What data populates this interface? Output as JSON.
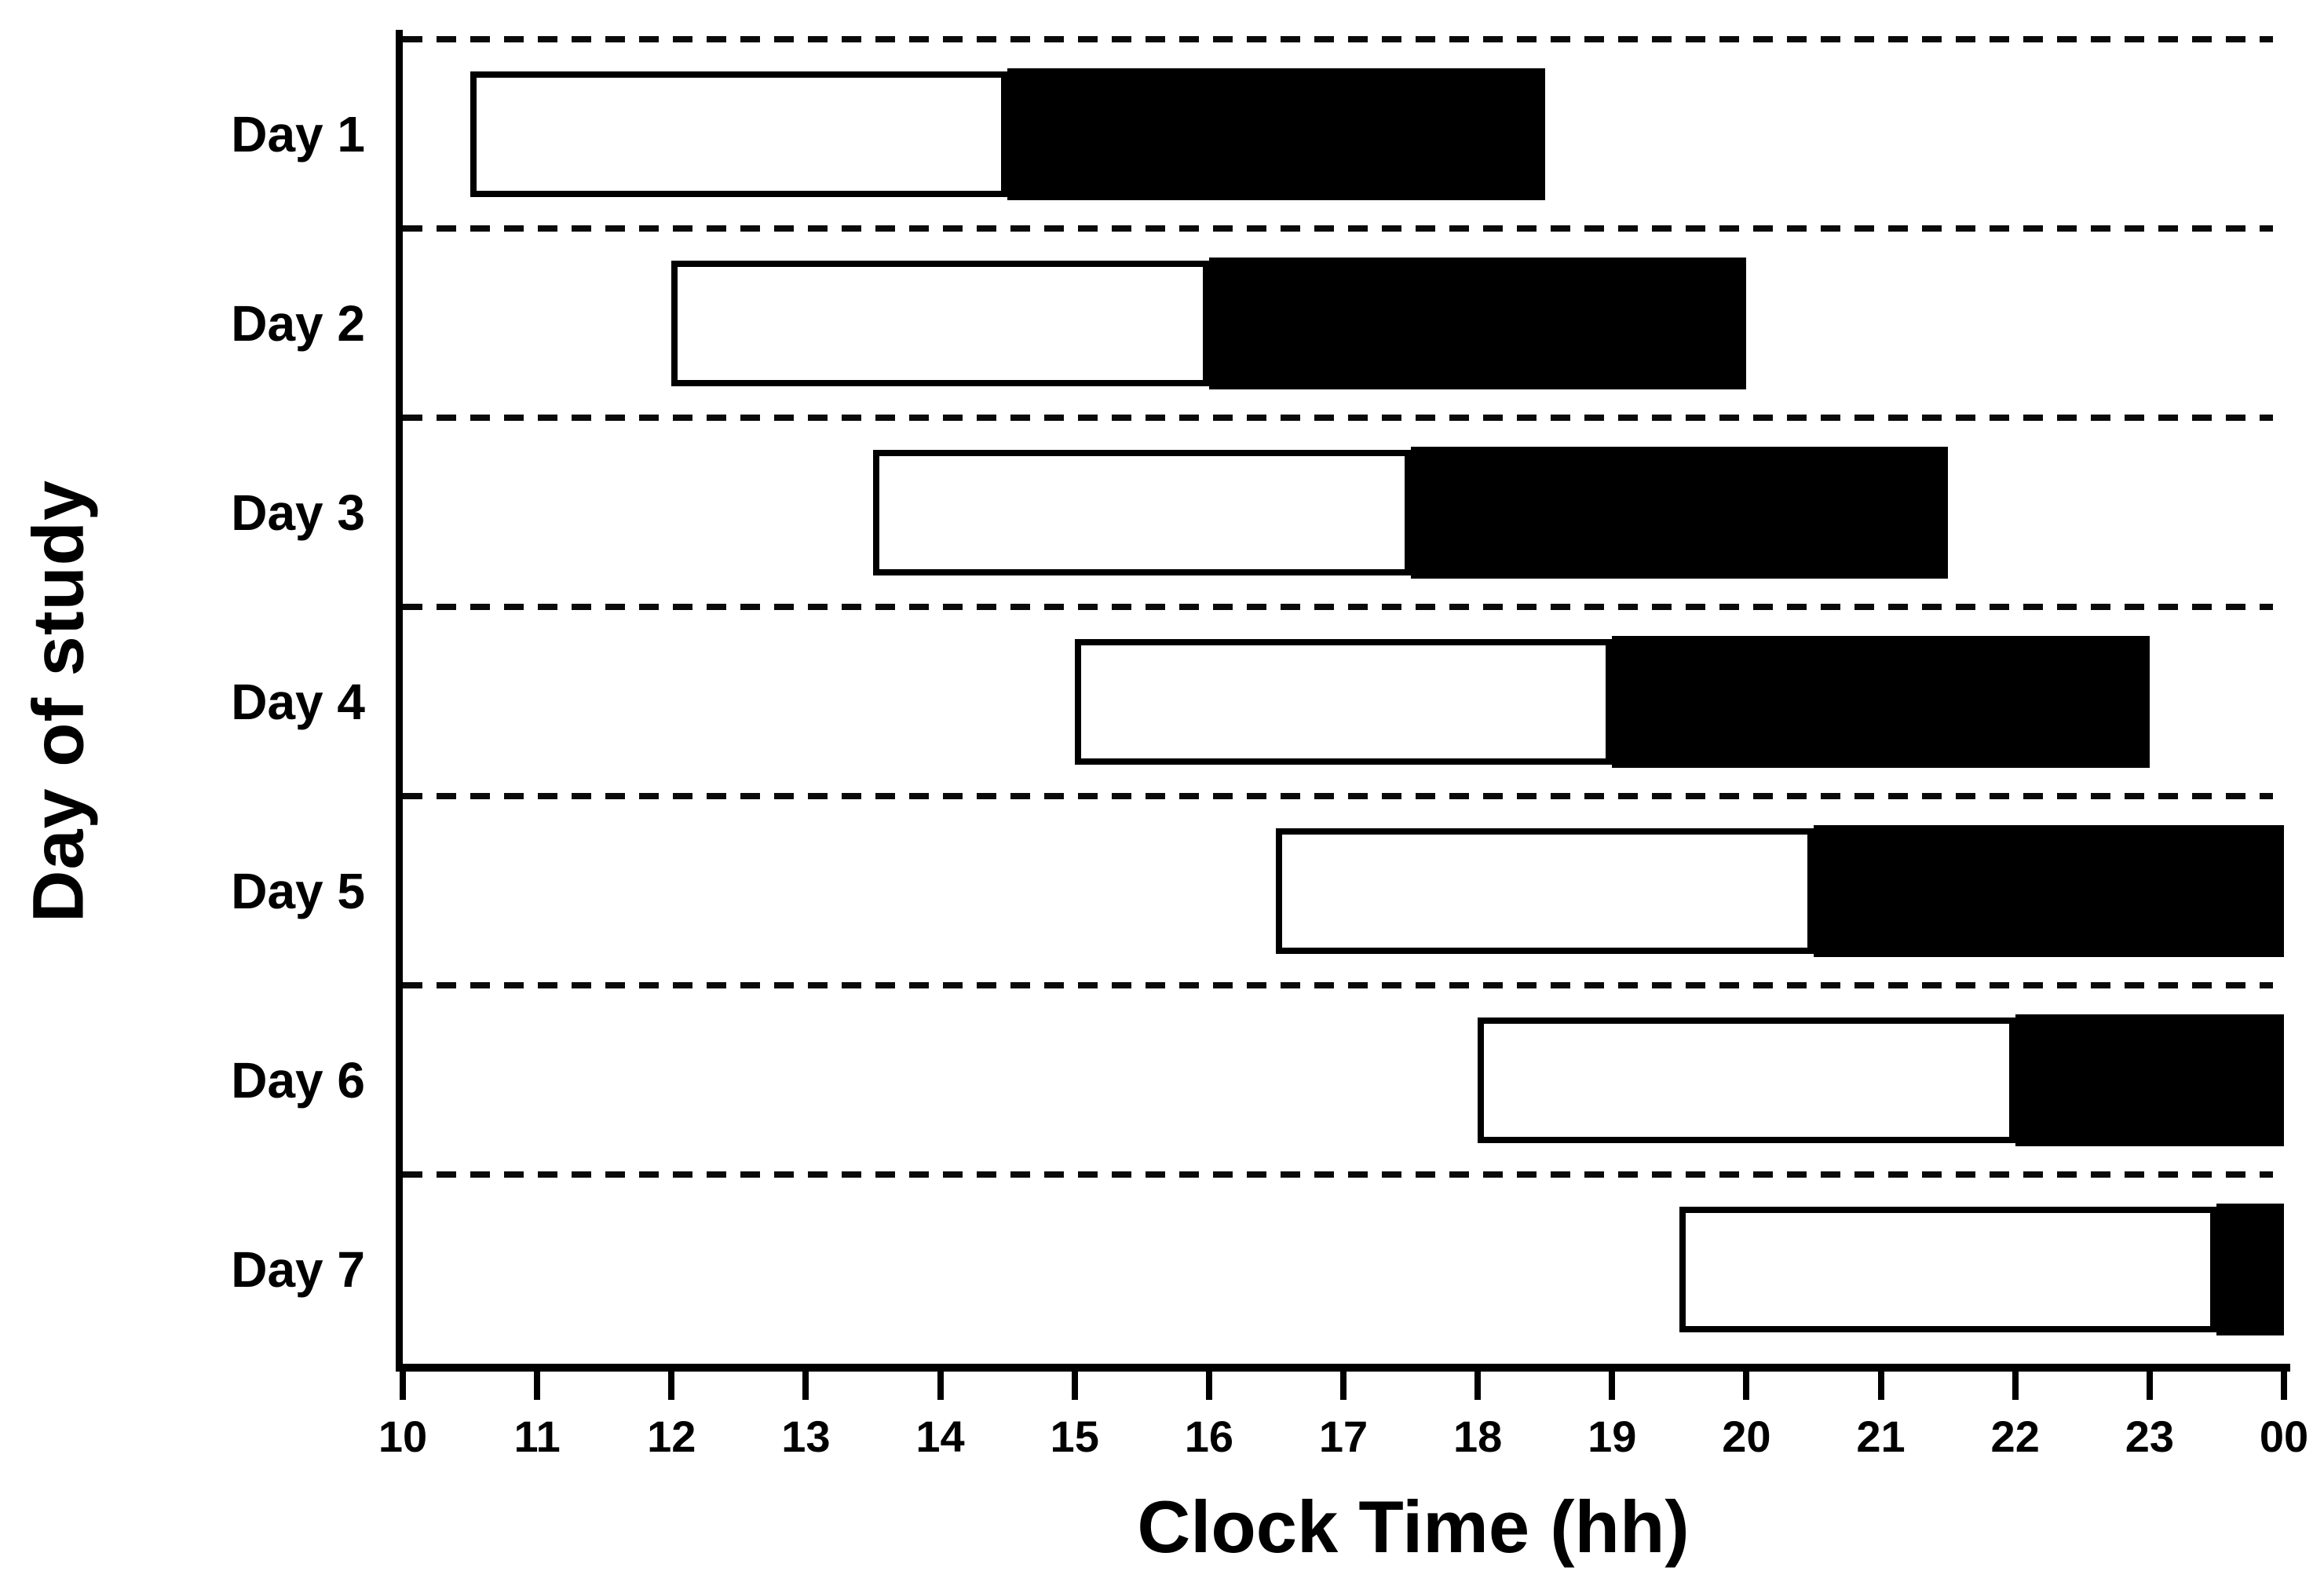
{
  "chart_data": {
    "type": "bar",
    "variant": "horizontal-gantt-schedule",
    "title": "",
    "xlabel": "Clock Time (hh)",
    "ylabel": "Day of study",
    "x_ticks": [
      "10",
      "11",
      "12",
      "13",
      "14",
      "15",
      "16",
      "17",
      "18",
      "19",
      "20",
      "21",
      "22",
      "23",
      "00"
    ],
    "x_range_hours": [
      10,
      24
    ],
    "grid": "dashed horizontal separators above each row, no vertical gridlines",
    "legend": "none",
    "categories": [
      "Day 1",
      "Day 2",
      "Day 3",
      "Day 4",
      "Day 5",
      "Day 6",
      "Day 7"
    ],
    "series": [
      {
        "name": "white-segment",
        "fill": "#ffffff",
        "outline": "#000000",
        "intervals_hours": [
          [
            10.5,
            14.5
          ],
          [
            12.0,
            16.0
          ],
          [
            13.5,
            17.5
          ],
          [
            15.0,
            19.0
          ],
          [
            16.5,
            20.5
          ],
          [
            18.0,
            22.0
          ],
          [
            19.5,
            23.5
          ]
        ]
      },
      {
        "name": "black-segment",
        "fill": "#000000",
        "outline": "#000000",
        "note": "black segments on Day 5, Day 6 and Day 7 are clipped at midnight (00)",
        "intervals_hours": [
          [
            14.5,
            18.5
          ],
          [
            16.0,
            20.0
          ],
          [
            17.5,
            21.5
          ],
          [
            19.0,
            23.0
          ],
          [
            20.5,
            24.0
          ],
          [
            22.0,
            24.0
          ],
          [
            23.5,
            24.0
          ]
        ]
      }
    ]
  },
  "colors": {
    "background": "#ffffff",
    "axis": "#000000",
    "bar_black": "#000000",
    "bar_white": "#ffffff",
    "separator": "#0a0a0a"
  }
}
